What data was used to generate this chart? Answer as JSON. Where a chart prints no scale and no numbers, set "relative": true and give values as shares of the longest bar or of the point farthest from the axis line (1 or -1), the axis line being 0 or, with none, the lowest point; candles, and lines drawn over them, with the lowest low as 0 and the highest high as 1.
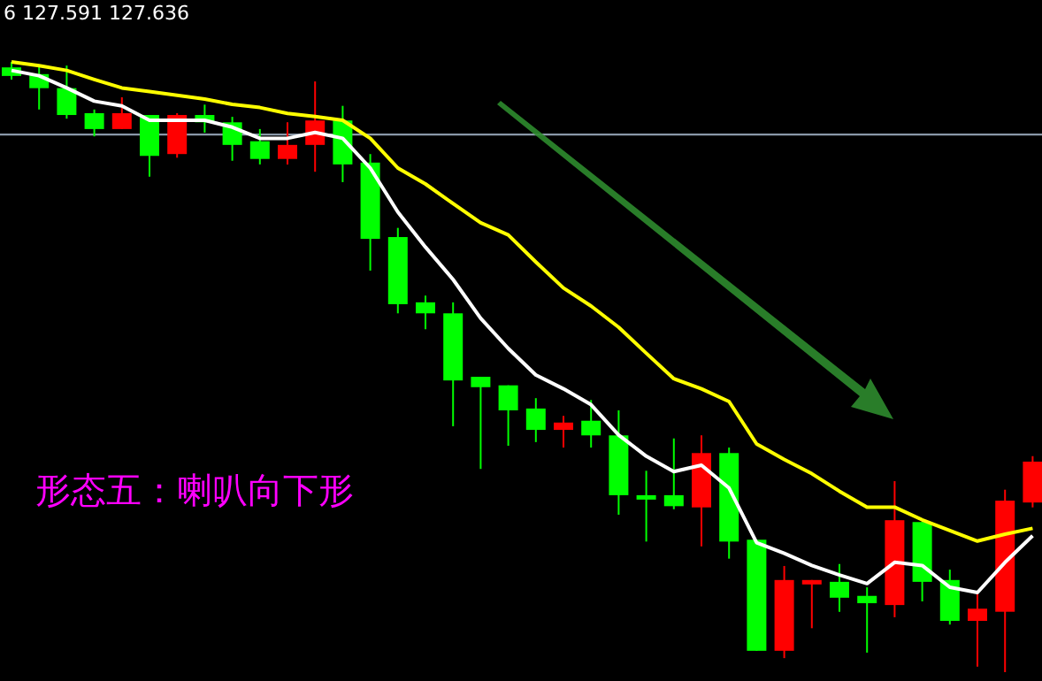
{
  "chart_data": [
    {
      "type": "candlestick",
      "relative": true,
      "categories": [
        null,
        null,
        null,
        null,
        null,
        null,
        null,
        null,
        null,
        null,
        null,
        null,
        null,
        null,
        null,
        null,
        null,
        null,
        null,
        null,
        null,
        null,
        null,
        null,
        null,
        null,
        null,
        null,
        null,
        null,
        null,
        null,
        null,
        null,
        null,
        null,
        null,
        null
      ],
      "ohlc": [
        [
          0.991,
          1.0,
          0.971,
          0.977
        ],
        [
          0.98,
          0.994,
          0.922,
          0.957
        ],
        [
          0.957,
          0.994,
          0.907,
          0.913
        ],
        [
          0.916,
          0.922,
          0.878,
          0.89
        ],
        [
          0.89,
          0.942,
          0.89,
          0.916
        ],
        [
          0.913,
          0.913,
          0.812,
          0.846
        ],
        [
          0.849,
          0.916,
          0.843,
          0.913
        ],
        [
          0.913,
          0.93,
          0.884,
          0.901
        ],
        [
          0.901,
          0.91,
          0.838,
          0.864
        ],
        [
          0.87,
          0.89,
          0.832,
          0.841
        ],
        [
          0.841,
          0.901,
          0.832,
          0.864
        ],
        [
          0.864,
          0.968,
          0.82,
          0.904
        ],
        [
          0.904,
          0.928,
          0.803,
          0.832
        ],
        [
          0.835,
          0.849,
          0.658,
          0.71
        ],
        [
          0.713,
          0.728,
          0.588,
          0.603
        ],
        [
          0.606,
          0.617,
          0.562,
          0.588
        ],
        [
          0.588,
          0.606,
          0.403,
          0.478
        ],
        [
          0.484,
          0.484,
          0.333,
          0.467
        ],
        [
          0.47,
          0.47,
          0.371,
          0.429
        ],
        [
          0.432,
          0.449,
          0.377,
          0.397
        ],
        [
          0.397,
          0.42,
          0.368,
          0.409
        ],
        [
          0.412,
          0.446,
          0.368,
          0.388
        ],
        [
          0.388,
          0.429,
          0.258,
          0.29
        ],
        [
          0.29,
          0.33,
          0.214,
          0.287
        ],
        [
          0.29,
          0.383,
          0.267,
          0.272
        ],
        [
          0.27,
          0.388,
          0.206,
          0.359
        ],
        [
          0.359,
          0.368,
          0.186,
          0.214
        ],
        [
          0.217,
          0.217,
          0.035,
          0.035
        ],
        [
          0.035,
          0.174,
          0.023,
          0.151
        ],
        [
          0.148,
          0.151,
          0.072,
          0.151
        ],
        [
          0.148,
          0.177,
          0.099,
          0.122
        ],
        [
          0.125,
          0.139,
          0.032,
          0.113
        ],
        [
          0.11,
          0.313,
          0.09,
          0.249
        ],
        [
          0.246,
          0.246,
          0.116,
          0.148
        ],
        [
          0.151,
          0.168,
          0.078,
          0.084
        ],
        [
          0.084,
          0.13,
          0.009,
          0.104
        ],
        [
          0.099,
          0.299,
          0.0,
          0.281
        ],
        [
          0.278,
          0.354,
          0.27,
          0.345
        ]
      ],
      "colors": [
        "#00ff00",
        "#00ff00",
        "#00ff00",
        "#00ff00",
        "#ff0000",
        "#00ff00",
        "#ff0000",
        "#00ff00",
        "#00ff00",
        "#00ff00",
        "#ff0000",
        "#ff0000",
        "#00ff00",
        "#00ff00",
        "#00ff00",
        "#00ff00",
        "#00ff00",
        "#00ff00",
        "#00ff00",
        "#00ff00",
        "#ff0000",
        "#00ff00",
        "#00ff00",
        "#00ff00",
        "#00ff00",
        "#ff0000",
        "#00ff00",
        "#00ff00",
        "#ff0000",
        "#ff0000",
        "#00ff00",
        "#00ff00",
        "#ff0000",
        "#00ff00",
        "#00ff00",
        "#ff0000",
        "#ff0000",
        "#ff0000"
      ],
      "ref_lines": [
        {
          "axis": "y",
          "value": 0.881,
          "color": "#8a98a8"
        }
      ],
      "annotations": [
        "6 127.591 127.636",
        "形态五：喇叭向下形"
      ]
    },
    {
      "type": "line",
      "relative": true,
      "categories": [
        null,
        null,
        null,
        null,
        null,
        null,
        null,
        null,
        null,
        null,
        null,
        null,
        null,
        null,
        null,
        null,
        null,
        null,
        null,
        null,
        null,
        null,
        null,
        null,
        null,
        null,
        null,
        null,
        null,
        null,
        null,
        null,
        null,
        null,
        null,
        null,
        null,
        null
      ],
      "series": [
        {
          "color": "#ffffff",
          "values": [
            0.984,
            0.974,
            0.951,
            0.926,
            0.917,
            0.89,
            0.89,
            0.89,
            0.877,
            0.856,
            0.856,
            0.867,
            0.856,
            0.8,
            0.717,
            0.651,
            0.59,
            0.517,
            0.46,
            0.41,
            0.384,
            0.354,
            0.297,
            0.257,
            0.228,
            0.24,
            0.197,
            0.094,
            0.074,
            0.051,
            0.033,
            0.017,
            0.057,
            0.051,
            0.01,
            0.0,
            0.057,
            0.107
          ]
        },
        {
          "color": "#ffff00",
          "values": [
            1.0,
            0.993,
            0.984,
            0.967,
            0.951,
            0.944,
            0.937,
            0.93,
            0.92,
            0.914,
            0.903,
            0.897,
            0.89,
            0.856,
            0.8,
            0.77,
            0.733,
            0.697,
            0.674,
            0.623,
            0.574,
            0.54,
            0.5,
            0.451,
            0.403,
            0.384,
            0.36,
            0.28,
            0.251,
            0.224,
            0.191,
            0.161,
            0.161,
            0.137,
            0.117,
            0.097,
            0.11,
            0.121
          ]
        }
      ]
    }
  ]
}
